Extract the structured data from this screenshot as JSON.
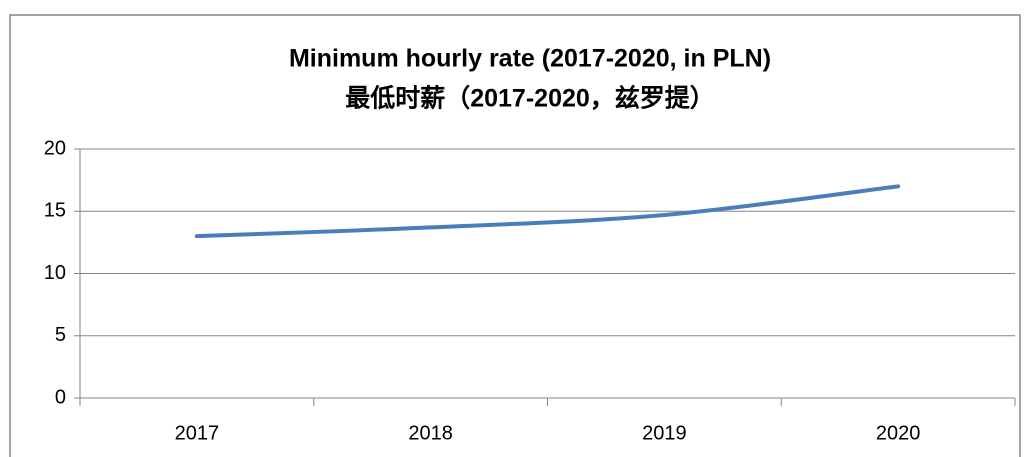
{
  "chart_data": {
    "type": "line",
    "title": "Minimum hourly rate (2017-2020, in PLN)",
    "subtitle": "最低时薪（2017-2020，兹罗提）",
    "categories": [
      "2017",
      "2018",
      "2019",
      "2020"
    ],
    "series": [
      {
        "name": "Minimum hourly rate",
        "color": "#4a7ebb",
        "values": [
          13.0,
          13.7,
          14.7,
          17.0
        ]
      }
    ],
    "ylim": [
      0,
      20
    ],
    "yticks": [
      0,
      5,
      10,
      15,
      20
    ],
    "grid": true,
    "legend": false
  }
}
